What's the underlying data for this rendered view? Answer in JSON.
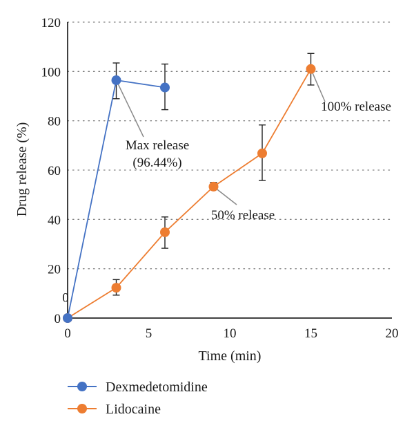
{
  "chart_data": {
    "type": "line",
    "title": "",
    "xlabel": "Time (min)",
    "ylabel": "Drug release (%)",
    "xlim": [
      0,
      20
    ],
    "ylim": [
      0,
      120
    ],
    "xticks": [
      0,
      5,
      10,
      15,
      20
    ],
    "yticks": [
      0,
      20,
      40,
      60,
      80,
      100,
      120
    ],
    "grid": "horizontal dotted",
    "legend": "bottom-left",
    "series": [
      {
        "name": "Dexmedetomidine",
        "color": "#4472C4",
        "x": [
          0,
          3,
          6
        ],
        "y": [
          0,
          96.44,
          93.5
        ],
        "err_low": [
          0,
          7.5,
          9
        ],
        "err_high": [
          0,
          7,
          9.5
        ]
      },
      {
        "name": "Lidocaine",
        "color": "#ED7D31",
        "x": [
          0,
          3,
          6,
          9,
          12,
          15
        ],
        "y": [
          0,
          12.3,
          34.8,
          53.3,
          66.8,
          101
        ],
        "err_low": [
          0,
          3,
          6.5,
          0,
          11,
          6.5
        ],
        "err_high": [
          0,
          3.3,
          6.2,
          1.7,
          11.5,
          6.3
        ]
      }
    ],
    "stray_label": "0",
    "annotations": [
      {
        "lines": [
          "Max release",
          "(96.44%)"
        ],
        "x": 3,
        "y": 96.44
      },
      {
        "lines": [
          "50% release"
        ],
        "x": 9,
        "y": 53.3
      },
      {
        "lines": [
          "100% release"
        ],
        "x": 15,
        "y": 101
      }
    ]
  }
}
